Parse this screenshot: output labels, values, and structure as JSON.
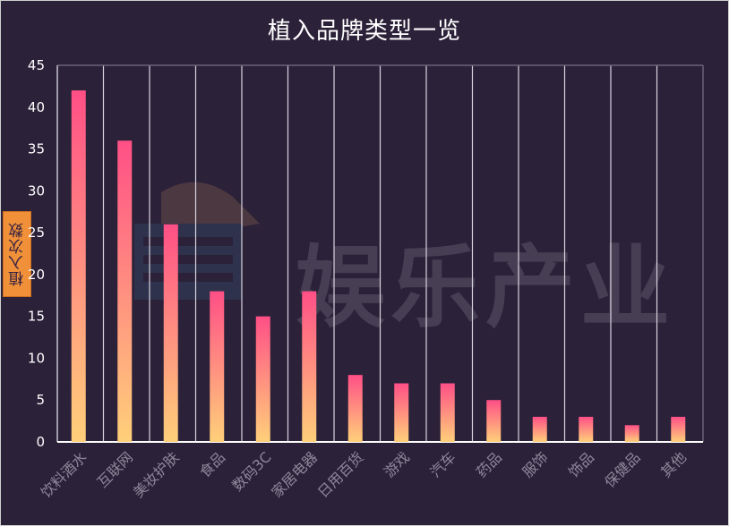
{
  "chart_data": {
    "type": "bar",
    "title": "植入品牌类型一览",
    "ylabel": "植入次数",
    "xlabel": "",
    "categories": [
      "饮料酒水",
      "互联网",
      "美妆护肤",
      "食品",
      "数码3C",
      "家居电器",
      "日用百货",
      "游戏",
      "汽车",
      "药品",
      "服饰",
      "饰品",
      "保健品",
      "其他"
    ],
    "values": [
      42,
      36,
      26,
      18,
      15,
      18,
      8,
      7,
      7,
      5,
      3,
      3,
      2,
      3
    ],
    "ylim": [
      0,
      45
    ],
    "yticks": [
      "0",
      "5",
      "10",
      "15",
      "20",
      "25",
      "30",
      "35",
      "40",
      "45"
    ],
    "grid": "vertical separators between categories",
    "colors": {
      "background": "#2b2139",
      "bar_top": "#ff4f86",
      "bar_bottom": "#ffd07a",
      "label_box": "#f0913a"
    }
  },
  "watermark": {
    "text": "娱乐产业"
  }
}
